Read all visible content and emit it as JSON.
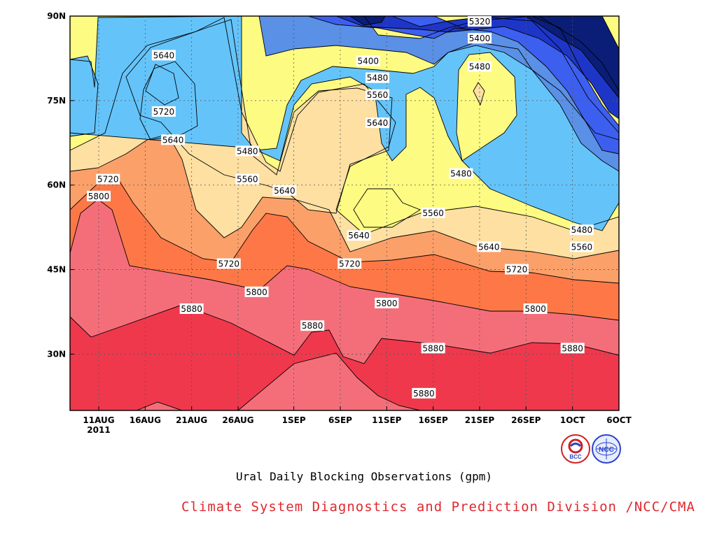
{
  "chart_data": {
    "type": "heatmap",
    "subtype": "filled-contour",
    "title": "Ural Daily Blocking Observations (gpm)",
    "x_tick_labels": [
      "11AUG",
      "16AUG",
      "21AUG",
      "26AUG",
      "1SEP",
      "6SEP",
      "11SEP",
      "16SEP",
      "21SEP",
      "26SEP",
      "1OCT",
      "6OCT"
    ],
    "x_year_label": "2011",
    "y_tick_labels": [
      "30N",
      "45N",
      "60N",
      "75N",
      "90N"
    ],
    "y_values_deg_north": [
      30,
      45,
      60,
      75,
      90
    ],
    "ylim": [
      20,
      90
    ],
    "grid": true,
    "contour_levels": [
      5320,
      5400,
      5480,
      5560,
      5640,
      5720,
      5800,
      5880
    ],
    "level_colors": [
      {
        "above": 5320,
        "color": "#0a1e78"
      },
      {
        "above": 5320,
        "color": "#1e36c8"
      },
      {
        "above": 5400,
        "color": "#3d5ff0"
      },
      {
        "above": 5480,
        "color": "#5a90e6"
      },
      {
        "above": 5480,
        "color": "#64c4fa"
      },
      {
        "above": 5560,
        "color": "#fdfb82"
      },
      {
        "above": 5640,
        "color": "#fde0a2"
      },
      {
        "above": 5720,
        "color": "#fca06a"
      },
      {
        "above": 5800,
        "color": "#fd7846"
      },
      {
        "above": 5880,
        "color": "#f46e7a"
      },
      {
        "above": 5880,
        "color": "#f0384c"
      }
    ],
    "contour_labels": [
      {
        "text": "5320",
        "date": "21SEP",
        "lat": 89
      },
      {
        "text": "5400",
        "date": "21SEP",
        "lat": 86
      },
      {
        "text": "5480",
        "date": "21SEP",
        "lat": 81
      },
      {
        "text": "5400",
        "date": "9SEP",
        "lat": 82
      },
      {
        "text": "5480",
        "date": "10SEP",
        "lat": 79
      },
      {
        "text": "5560",
        "date": "10SEP",
        "lat": 76
      },
      {
        "text": "5640",
        "date": "10SEP",
        "lat": 71
      },
      {
        "text": "5640",
        "date": "18AUG",
        "lat": 83
      },
      {
        "text": "5720",
        "date": "18AUG",
        "lat": 73
      },
      {
        "text": "5640",
        "date": "19AUG",
        "lat": 68
      },
      {
        "text": "5720",
        "date": "12AUG",
        "lat": 61
      },
      {
        "text": "5800",
        "date": "11AUG",
        "lat": 58
      },
      {
        "text": "5480",
        "date": "27AUG",
        "lat": 66
      },
      {
        "text": "5560",
        "date": "27AUG",
        "lat": 61
      },
      {
        "text": "5640",
        "date": "31AUG",
        "lat": 59
      },
      {
        "text": "5480",
        "date": "19SEP",
        "lat": 62
      },
      {
        "text": "5560",
        "date": "16SEP",
        "lat": 55
      },
      {
        "text": "5640",
        "date": "8SEP",
        "lat": 51
      },
      {
        "text": "5720",
        "date": "7SEP",
        "lat": 46
      },
      {
        "text": "5800",
        "date": "11SEP",
        "lat": 39
      },
      {
        "text": "5720",
        "date": "25AUG",
        "lat": 46
      },
      {
        "text": "5800",
        "date": "28AUG",
        "lat": 41
      },
      {
        "text": "5880",
        "date": "21AUG",
        "lat": 38
      },
      {
        "text": "5880",
        "date": "3SEP",
        "lat": 35
      },
      {
        "text": "5880",
        "date": "16SEP",
        "lat": 31
      },
      {
        "text": "5880",
        "date": "15SEP",
        "lat": 23
      },
      {
        "text": "5640",
        "date": "22SEP",
        "lat": 49
      },
      {
        "text": "5720",
        "date": "25SEP",
        "lat": 45
      },
      {
        "text": "5800",
        "date": "27SEP",
        "lat": 38
      },
      {
        "text": "5880",
        "date": "1OCT",
        "lat": 31
      },
      {
        "text": "5480",
        "date": "2OCT",
        "lat": 52
      },
      {
        "text": "5560",
        "date": "2OCT",
        "lat": 49
      }
    ]
  },
  "caption": "Ural Daily Blocking Observations (gpm)",
  "credit": "Climate System Diagnostics and Prediction Division /NCC/CMA",
  "logos": [
    {
      "name": "BCC",
      "color": "#d02020"
    },
    {
      "name": "NCC",
      "color": "#2a46c8"
    }
  ]
}
